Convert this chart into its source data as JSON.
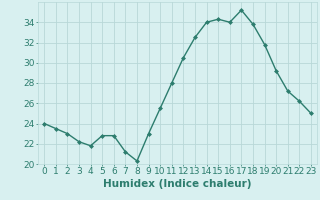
{
  "x": [
    0,
    1,
    2,
    3,
    4,
    5,
    6,
    7,
    8,
    9,
    10,
    11,
    12,
    13,
    14,
    15,
    16,
    17,
    18,
    19,
    20,
    21,
    22,
    23
  ],
  "y": [
    24.0,
    23.5,
    23.0,
    22.2,
    21.8,
    22.8,
    22.8,
    21.2,
    20.3,
    23.0,
    25.5,
    28.0,
    30.5,
    32.5,
    34.0,
    34.3,
    34.0,
    35.2,
    33.8,
    31.8,
    29.2,
    27.2,
    26.2,
    25.0
  ],
  "line_color": "#2d7d6e",
  "bg_color": "#d8f0f0",
  "grid_color": "#b8d8d8",
  "xlabel": "Humidex (Indice chaleur)",
  "ylim": [
    20,
    36
  ],
  "xlim": [
    -0.5,
    23.5
  ],
  "yticks": [
    20,
    22,
    24,
    26,
    28,
    30,
    32,
    34
  ],
  "xticks": [
    0,
    1,
    2,
    3,
    4,
    5,
    6,
    7,
    8,
    9,
    10,
    11,
    12,
    13,
    14,
    15,
    16,
    17,
    18,
    19,
    20,
    21,
    22,
    23
  ],
  "marker": "D",
  "marker_size": 2.0,
  "line_width": 1.0,
  "xlabel_fontsize": 7.5,
  "tick_fontsize": 6.5
}
